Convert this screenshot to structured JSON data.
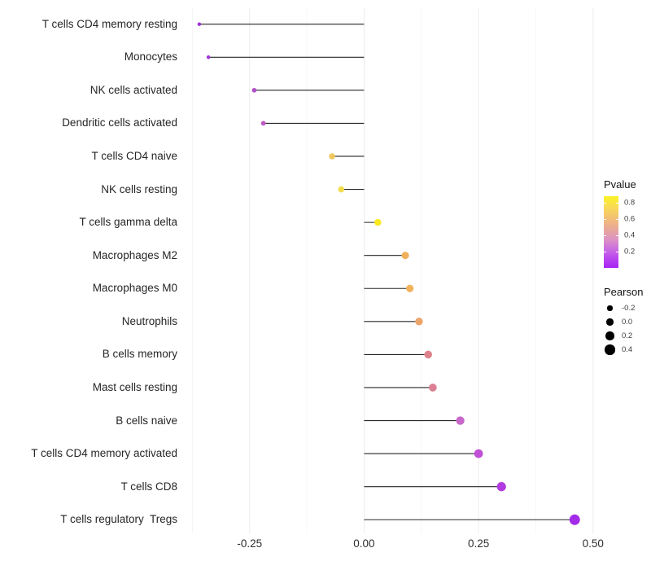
{
  "chart_data": {
    "type": "lollipop",
    "orientation": "horizontal",
    "title": "",
    "xlabel": "",
    "ylabel": "",
    "xlim": [
      -0.39,
      0.52
    ],
    "xticks": [
      {
        "value": -0.25,
        "label": "-0.25"
      },
      {
        "value": 0.0,
        "label": "0.00"
      },
      {
        "value": 0.25,
        "label": "0.25"
      },
      {
        "value": 0.5,
        "label": "0.50"
      }
    ],
    "grid_minor_step": 0.125,
    "grid_major_color": "#ececec",
    "grid_minor_color": "#f5f5f5",
    "stem_color": "#262626",
    "points": [
      {
        "label": "T cells CD4 memory resting",
        "pearson": -0.36,
        "pvalue": 0.06,
        "color": "#9A30D8"
      },
      {
        "label": "Monocytes",
        "pearson": -0.34,
        "pvalue": 0.08,
        "color": "#A037D8"
      },
      {
        "label": "NK cells activated",
        "pearson": -0.24,
        "pvalue": 0.2,
        "color": "#B04FC8"
      },
      {
        "label": "Dendritic cells activated",
        "pearson": -0.22,
        "pvalue": 0.26,
        "color": "#BC5BC4"
      },
      {
        "label": "T cells CD4 naive",
        "pearson": -0.07,
        "pvalue": 0.7,
        "color": "#F0C75E"
      },
      {
        "label": "NK cells resting",
        "pearson": -0.05,
        "pvalue": 0.78,
        "color": "#F2DC4E"
      },
      {
        "label": "T cells gamma delta",
        "pearson": 0.03,
        "pvalue": 0.85,
        "color": "#F9E921"
      },
      {
        "label": "Macrophages M2",
        "pearson": 0.09,
        "pvalue": 0.62,
        "color": "#F0B05A"
      },
      {
        "label": "Macrophages M0",
        "pearson": 0.1,
        "pvalue": 0.62,
        "color": "#F2B25C"
      },
      {
        "label": "Neutrophils",
        "pearson": 0.12,
        "pvalue": 0.56,
        "color": "#ECA46A"
      },
      {
        "label": "B cells memory",
        "pearson": 0.14,
        "pvalue": 0.45,
        "color": "#DD828C"
      },
      {
        "label": "Mast cells resting",
        "pearson": 0.15,
        "pvalue": 0.47,
        "color": "#DB8094"
      },
      {
        "label": "B cells naive",
        "pearson": 0.21,
        "pvalue": 0.28,
        "color": "#C767C9"
      },
      {
        "label": "T cells CD4 memory activated",
        "pearson": 0.25,
        "pvalue": 0.18,
        "color": "#C050D5"
      },
      {
        "label": "T cells CD8",
        "pearson": 0.3,
        "pvalue": 0.1,
        "color": "#B13BE0"
      },
      {
        "label": "T cells regulatory  Tregs",
        "pearson": 0.46,
        "pvalue": 0.03,
        "color": "#A32CE8"
      }
    ],
    "color_legend": {
      "title": "Pvalue",
      "tick_labels": [
        "0.8",
        "0.6",
        "0.4",
        "0.2"
      ],
      "tick_values": [
        0.8,
        0.6,
        0.4,
        0.2
      ],
      "range": [
        0,
        0.88
      ],
      "gradient_stops": [
        {
          "pos": 0.0,
          "color": "#FBF124"
        },
        {
          "pos": 0.15,
          "color": "#F8DC55"
        },
        {
          "pos": 0.32,
          "color": "#F2BD78"
        },
        {
          "pos": 0.47,
          "color": "#E8A69C"
        },
        {
          "pos": 0.6,
          "color": "#DD93C2"
        },
        {
          "pos": 0.74,
          "color": "#CB6CE2"
        },
        {
          "pos": 0.88,
          "color": "#B842F0"
        },
        {
          "pos": 1.0,
          "color": "#A725F2"
        }
      ]
    },
    "size_legend": {
      "title": "Pearson",
      "entries": [
        {
          "label": "-0.2",
          "value": -0.2
        },
        {
          "label": "0.0",
          "value": 0.0
        },
        {
          "label": "0.2",
          "value": 0.2
        },
        {
          "label": "0.4",
          "value": 0.4
        }
      ]
    }
  }
}
